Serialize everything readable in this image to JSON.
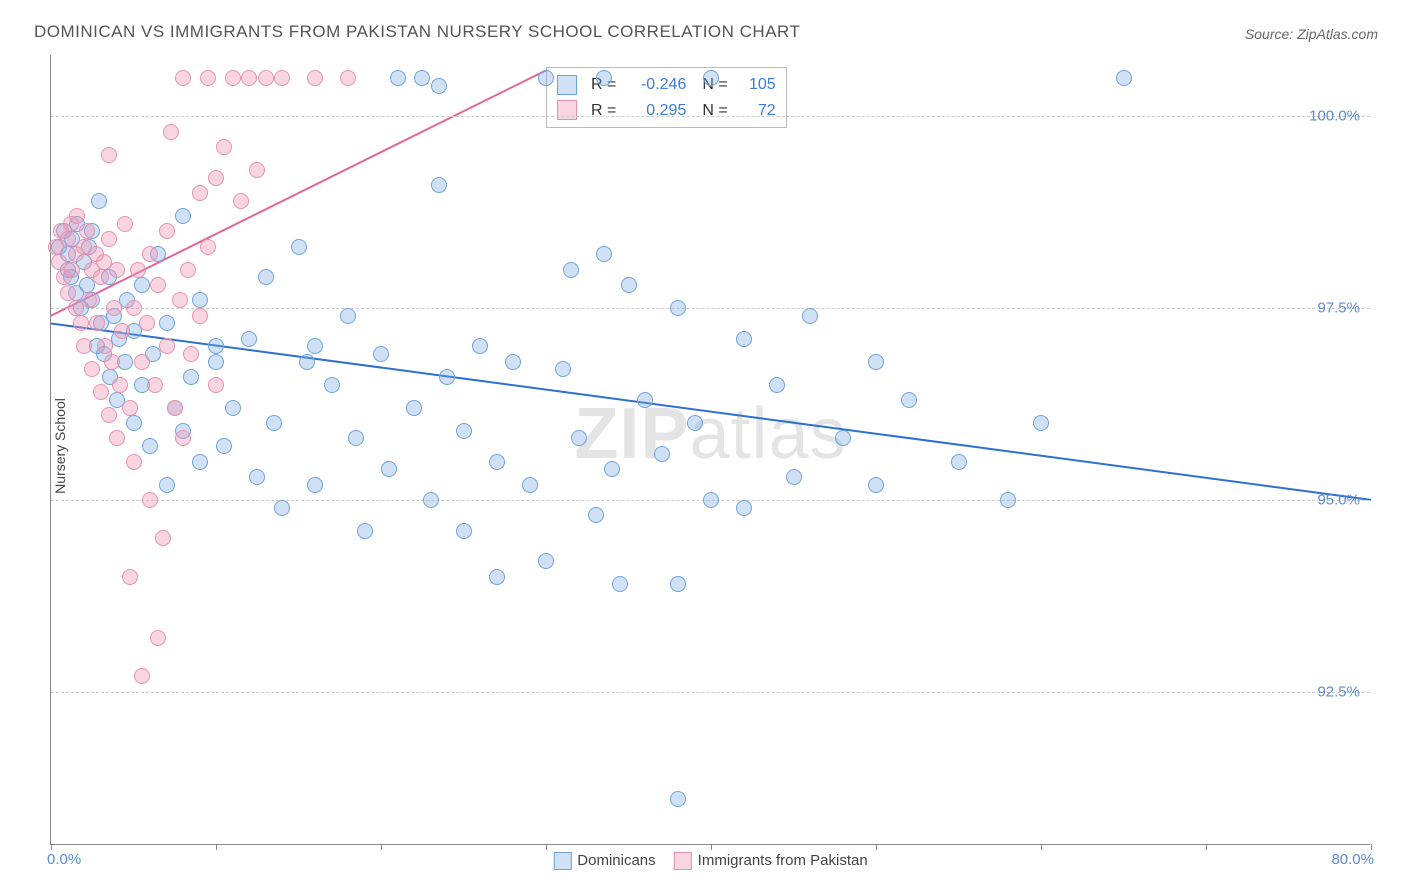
{
  "title": "DOMINICAN VS IMMIGRANTS FROM PAKISTAN NURSERY SCHOOL CORRELATION CHART",
  "source": "Source: ZipAtlas.com",
  "yaxis_label": "Nursery School",
  "watermark_bold": "ZIP",
  "watermark_rest": "atlas",
  "chart": {
    "type": "scatter",
    "xlim": [
      0,
      80
    ],
    "ylim": [
      90.5,
      100.8
    ],
    "xtick_positions": [
      0,
      10,
      20,
      30,
      40,
      50,
      60,
      70,
      80
    ],
    "xtick_label_left": "0.0%",
    "xtick_label_right": "80.0%",
    "ytick_positions": [
      92.5,
      95.0,
      97.5,
      100.0
    ],
    "ytick_labels": [
      "92.5%",
      "95.0%",
      "97.5%",
      "100.0%"
    ],
    "background_color": "#ffffff",
    "grid_color": "#cccccc",
    "dot_radius": 8,
    "series": [
      {
        "name": "Dominicans",
        "fill": "rgba(120,170,230,0.35)",
        "stroke": "#6fa3de",
        "trend": {
          "x1": 0,
          "y1": 97.3,
          "x2": 80,
          "y2": 95.0,
          "color": "#2e6fd1",
          "width": 2
        },
        "points": [
          [
            0.5,
            98.3
          ],
          [
            0.8,
            98.5
          ],
          [
            1.0,
            98.0
          ],
          [
            1.0,
            98.2
          ],
          [
            1.2,
            97.9
          ],
          [
            1.3,
            98.4
          ],
          [
            1.5,
            97.7
          ],
          [
            1.6,
            98.6
          ],
          [
            1.8,
            97.5
          ],
          [
            2.0,
            98.1
          ],
          [
            2.2,
            97.8
          ],
          [
            2.3,
            98.3
          ],
          [
            2.5,
            97.6
          ],
          [
            2.5,
            98.5
          ],
          [
            2.8,
            97.0
          ],
          [
            2.9,
            98.9
          ],
          [
            3.0,
            97.3
          ],
          [
            3.2,
            96.9
          ],
          [
            3.5,
            97.9
          ],
          [
            3.6,
            96.6
          ],
          [
            3.8,
            97.4
          ],
          [
            4.0,
            96.3
          ],
          [
            4.1,
            97.1
          ],
          [
            4.5,
            96.8
          ],
          [
            4.6,
            97.6
          ],
          [
            5.0,
            96.0
          ],
          [
            5.0,
            97.2
          ],
          [
            5.5,
            96.5
          ],
          [
            5.5,
            97.8
          ],
          [
            6.0,
            95.7
          ],
          [
            6.2,
            96.9
          ],
          [
            6.5,
            98.2
          ],
          [
            7.0,
            95.2
          ],
          [
            7.0,
            97.3
          ],
          [
            7.5,
            96.2
          ],
          [
            8.0,
            98.7
          ],
          [
            8.0,
            95.9
          ],
          [
            8.5,
            96.6
          ],
          [
            9.0,
            97.6
          ],
          [
            9.0,
            95.5
          ],
          [
            10.0,
            96.8
          ],
          [
            10.0,
            97.0
          ],
          [
            10.5,
            95.7
          ],
          [
            11.0,
            96.2
          ],
          [
            12.0,
            97.1
          ],
          [
            12.5,
            95.3
          ],
          [
            13.0,
            97.9
          ],
          [
            13.5,
            96.0
          ],
          [
            14.0,
            94.9
          ],
          [
            15.0,
            98.3
          ],
          [
            15.5,
            96.8
          ],
          [
            16.0,
            97.0
          ],
          [
            16.0,
            95.2
          ],
          [
            17.0,
            96.5
          ],
          [
            18.0,
            97.4
          ],
          [
            18.5,
            95.8
          ],
          [
            19.0,
            94.6
          ],
          [
            20.0,
            96.9
          ],
          [
            20.5,
            95.4
          ],
          [
            21.0,
            100.5
          ],
          [
            22.0,
            96.2
          ],
          [
            22.5,
            100.5
          ],
          [
            23.0,
            95.0
          ],
          [
            23.5,
            100.4
          ],
          [
            23.5,
            99.1
          ],
          [
            24.0,
            96.6
          ],
          [
            25.0,
            95.9
          ],
          [
            25.0,
            94.6
          ],
          [
            26.0,
            97.0
          ],
          [
            27.0,
            95.5
          ],
          [
            27.0,
            94.0
          ],
          [
            28.0,
            96.8
          ],
          [
            29.0,
            95.2
          ],
          [
            30.0,
            100.5
          ],
          [
            30.0,
            94.2
          ],
          [
            31.0,
            96.7
          ],
          [
            31.5,
            98.0
          ],
          [
            32.0,
            95.8
          ],
          [
            33.0,
            94.8
          ],
          [
            33.5,
            98.2
          ],
          [
            33.5,
            100.5
          ],
          [
            34.0,
            95.4
          ],
          [
            34.5,
            93.9
          ],
          [
            35.0,
            97.8
          ],
          [
            36.0,
            96.3
          ],
          [
            37.0,
            95.6
          ],
          [
            38.0,
            97.5
          ],
          [
            38.0,
            93.9
          ],
          [
            39.0,
            96.0
          ],
          [
            40.0,
            95.0
          ],
          [
            40.0,
            100.5
          ],
          [
            42.0,
            97.1
          ],
          [
            42.0,
            94.9
          ],
          [
            44.0,
            96.5
          ],
          [
            45.0,
            95.3
          ],
          [
            46.0,
            97.4
          ],
          [
            48.0,
            95.8
          ],
          [
            50.0,
            96.8
          ],
          [
            50.0,
            95.2
          ],
          [
            52.0,
            96.3
          ],
          [
            55.0,
            95.5
          ],
          [
            58.0,
            95.0
          ],
          [
            60.0,
            96.0
          ],
          [
            65.0,
            100.5
          ],
          [
            38.0,
            91.1
          ]
        ]
      },
      {
        "name": "Immigrants from Pakistan",
        "fill": "rgba(240,150,180,0.40)",
        "stroke": "#e593b0",
        "trend": {
          "x1": 0,
          "y1": 97.4,
          "x2": 30,
          "y2": 100.6,
          "color": "#e46694",
          "width": 2
        },
        "points": [
          [
            0.3,
            98.3
          ],
          [
            0.5,
            98.1
          ],
          [
            0.6,
            98.5
          ],
          [
            0.8,
            97.9
          ],
          [
            1.0,
            98.4
          ],
          [
            1.0,
            97.7
          ],
          [
            1.2,
            98.6
          ],
          [
            1.3,
            98.0
          ],
          [
            1.5,
            98.2
          ],
          [
            1.5,
            97.5
          ],
          [
            1.6,
            98.7
          ],
          [
            1.8,
            97.3
          ],
          [
            2.0,
            98.3
          ],
          [
            2.0,
            97.0
          ],
          [
            2.2,
            98.5
          ],
          [
            2.3,
            97.6
          ],
          [
            2.5,
            98.0
          ],
          [
            2.5,
            96.7
          ],
          [
            2.7,
            98.2
          ],
          [
            2.8,
            97.3
          ],
          [
            3.0,
            97.9
          ],
          [
            3.0,
            96.4
          ],
          [
            3.2,
            98.1
          ],
          [
            3.3,
            97.0
          ],
          [
            3.5,
            96.1
          ],
          [
            3.5,
            98.4
          ],
          [
            3.7,
            96.8
          ],
          [
            3.8,
            97.5
          ],
          [
            4.0,
            95.8
          ],
          [
            4.0,
            98.0
          ],
          [
            4.2,
            96.5
          ],
          [
            4.3,
            97.2
          ],
          [
            4.5,
            98.6
          ],
          [
            4.8,
            96.2
          ],
          [
            5.0,
            97.5
          ],
          [
            5.0,
            95.5
          ],
          [
            5.3,
            98.0
          ],
          [
            5.5,
            96.8
          ],
          [
            5.8,
            97.3
          ],
          [
            6.0,
            95.0
          ],
          [
            6.0,
            98.2
          ],
          [
            6.3,
            96.5
          ],
          [
            6.5,
            97.8
          ],
          [
            6.8,
            94.5
          ],
          [
            7.0,
            97.0
          ],
          [
            7.0,
            98.5
          ],
          [
            7.3,
            99.8
          ],
          [
            7.5,
            96.2
          ],
          [
            7.8,
            97.6
          ],
          [
            8.0,
            100.5
          ],
          [
            8.0,
            95.8
          ],
          [
            8.3,
            98.0
          ],
          [
            8.5,
            96.9
          ],
          [
            9.0,
            99.0
          ],
          [
            9.0,
            97.4
          ],
          [
            9.5,
            98.3
          ],
          [
            9.5,
            100.5
          ],
          [
            10.0,
            99.2
          ],
          [
            10.0,
            96.5
          ],
          [
            10.5,
            99.6
          ],
          [
            11.0,
            100.5
          ],
          [
            11.5,
            98.9
          ],
          [
            12.0,
            100.5
          ],
          [
            12.5,
            99.3
          ],
          [
            13.0,
            100.5
          ],
          [
            14.0,
            100.5
          ],
          [
            16.0,
            100.5
          ],
          [
            18.0,
            100.5
          ],
          [
            5.5,
            92.7
          ],
          [
            6.5,
            93.2
          ],
          [
            4.8,
            94.0
          ],
          [
            3.5,
            99.5
          ]
        ]
      }
    ],
    "stats": [
      {
        "series": 0,
        "R": "-0.246",
        "N": "105"
      },
      {
        "series": 1,
        "R": "0.295",
        "N": "72"
      }
    ],
    "legend_bottom": [
      {
        "series": 0
      },
      {
        "series": 1
      }
    ]
  }
}
